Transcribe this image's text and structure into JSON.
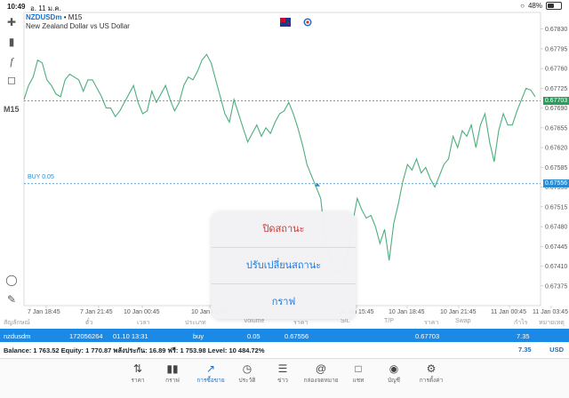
{
  "status_bar": {
    "time": "10:49",
    "date": "อ. 11 ม.ค.",
    "battery_text": "48%",
    "battery_level": 0.48
  },
  "chart_header": {
    "symbol": "NZDUSDm",
    "separator": "•",
    "timeframe": "M15",
    "description": "New Zealand Dollar vs US Dollar"
  },
  "timeframe_button": "M15",
  "tools": [
    "crosshair-icon",
    "candles-icon",
    "function-icon",
    "shapes-icon"
  ],
  "price_scale": [
    "0.67830",
    "0.67795",
    "0.67760",
    "0.67725",
    "0.67690",
    "0.67655",
    "0.67620",
    "0.67585",
    "0.67550",
    "0.67515",
    "0.67480",
    "0.67445",
    "0.67410",
    "0.67375"
  ],
  "current_price": "0.67703",
  "buy_price_label": "0.67556",
  "buy_label": "BUY 0.05",
  "time_scale": [
    "7 Jan 18:45",
    "7 Jan 21:45",
    "10 Jan 00:45",
    "10 Jan 03:45",
    "10 Jan 15:45",
    "10 Jan 18:45",
    "10 Jan 21:45",
    "11 Jan 00:45",
    "11 Jan 03:45"
  ],
  "chart_data": {
    "type": "line",
    "ylim": [
      0.6734,
      0.6785
    ],
    "color": "#4caf7d",
    "values": [
      0.67705,
      0.6773,
      0.67745,
      0.67775,
      0.6777,
      0.6774,
      0.6773,
      0.67715,
      0.6771,
      0.6774,
      0.6775,
      0.67745,
      0.6774,
      0.6772,
      0.6774,
      0.6774,
      0.67725,
      0.6771,
      0.6769,
      0.6769,
      0.67675,
      0.67685,
      0.677,
      0.67715,
      0.6773,
      0.677,
      0.6768,
      0.67685,
      0.6772,
      0.677,
      0.67715,
      0.6773,
      0.67705,
      0.67685,
      0.677,
      0.6773,
      0.67745,
      0.6774,
      0.67755,
      0.67775,
      0.67785,
      0.6777,
      0.6774,
      0.6771,
      0.6768,
      0.67665,
      0.67705,
      0.6768,
      0.67655,
      0.6763,
      0.67645,
      0.6766,
      0.6764,
      0.67655,
      0.67645,
      0.67665,
      0.6768,
      0.67685,
      0.677,
      0.6768,
      0.67655,
      0.67625,
      0.6759,
      0.6757,
      0.6755,
      0.6753,
      0.6746,
      0.6743,
      0.6741,
      0.674,
      0.67405,
      0.6744,
      0.67485,
      0.6753,
      0.6751,
      0.67495,
      0.675,
      0.6748,
      0.6745,
      0.67475,
      0.6742,
      0.67485,
      0.6752,
      0.6756,
      0.6759,
      0.6758,
      0.676,
      0.67575,
      0.67585,
      0.67565,
      0.6755,
      0.6757,
      0.6759,
      0.676,
      0.6764,
      0.6762,
      0.6765,
      0.6764,
      0.6766,
      0.6762,
      0.6766,
      0.6768,
      0.6763,
      0.67595,
      0.6765,
      0.6768,
      0.6766,
      0.6766,
      0.67685,
      0.67705,
      0.67725,
      0.67722,
      0.6771
    ]
  },
  "action_sheet": {
    "close": "ปิดสถานะ",
    "modify": "ปรับเปลี่ยนสถานะ",
    "chart": "กราฟ"
  },
  "table_header": {
    "symbol": "สัญลักษณ์",
    "ticket": "ตั๋ว",
    "time": "เวลา",
    "type": "ประเภท",
    "volume": "Volume",
    "price": "ราคา",
    "sl": "S/L",
    "tp": "T/P",
    "cur_price": "ราคา",
    "swap": "Swap",
    "profit": "กำไร",
    "comment": "หมายเหตุ"
  },
  "position": {
    "symbol": "nzdusdm",
    "ticket": "172056264",
    "time": "01.10 13:31",
    "type": "buy",
    "volume": "0.05",
    "price": "0.67556",
    "cur_price": "0.67703",
    "profit": "7.35"
  },
  "balance": {
    "line": "Balance: 1 763.52 Equity: 1 770.87 พลังประกัน: 16.89 ฟรี: 1 753.98 Level: 10 484.72%",
    "profit": "7.35",
    "currency": "USD"
  },
  "tabs": [
    {
      "icon": "quotes-icon",
      "label": "ราคา"
    },
    {
      "icon": "chart-icon",
      "label": "กราฟ"
    },
    {
      "icon": "trade-icon",
      "label": "การซื้อขาย",
      "active": true
    },
    {
      "icon": "history-icon",
      "label": "ประวัติ"
    },
    {
      "icon": "news-icon",
      "label": "ข่าว"
    },
    {
      "icon": "mailbox-icon",
      "label": "กล่องจดหมาย"
    },
    {
      "icon": "chat-icon",
      "label": "แชท"
    },
    {
      "icon": "account-icon",
      "label": "บัญชี"
    },
    {
      "icon": "settings-icon",
      "label": "การตั้งค่า"
    }
  ]
}
